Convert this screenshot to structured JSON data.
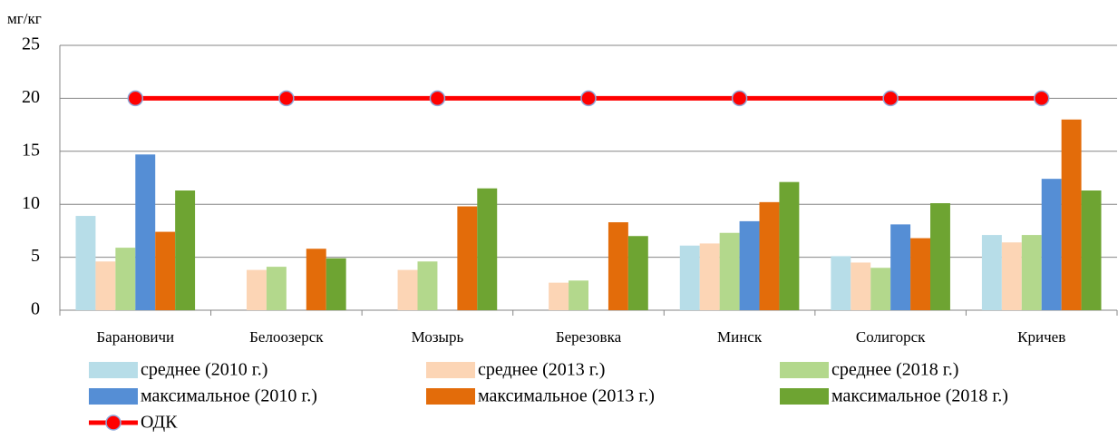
{
  "chart_data": {
    "type": "bar",
    "ylabel": "мг/кг",
    "categories": [
      "Барановичи",
      "Белоозерск",
      "Мозырь",
      "Березовка",
      "Минск",
      "Солигорск",
      "Кричев"
    ],
    "series": [
      {
        "name": "среднее (2010 г.)",
        "color": "#b7dde8",
        "values": [
          8.9,
          null,
          null,
          null,
          6.1,
          5.1,
          7.1
        ]
      },
      {
        "name": "среднее (2013 г.)",
        "color": "#fcd5b5",
        "values": [
          4.6,
          3.8,
          3.8,
          2.6,
          6.3,
          4.5,
          6.4
        ]
      },
      {
        "name": "среднее (2018 г.)",
        "color": "#b3d88c",
        "values": [
          5.9,
          4.1,
          4.6,
          2.8,
          7.3,
          4.0,
          7.1
        ]
      },
      {
        "name": "максимальное (2010 г.)",
        "color": "#558ed5",
        "values": [
          14.7,
          null,
          null,
          null,
          8.4,
          8.1,
          12.4
        ]
      },
      {
        "name": "максимальное (2013 г.)",
        "color": "#e36c0a",
        "values": [
          7.4,
          5.8,
          9.8,
          8.3,
          10.2,
          6.8,
          18.0
        ]
      },
      {
        "name": "максимальное (2018 г.)",
        "color": "#6ea432",
        "values": [
          11.3,
          4.9,
          11.5,
          7.0,
          12.1,
          10.1,
          11.3
        ]
      },
      {
        "name": "ОДК",
        "type": "line",
        "color": "#ff0000",
        "values": [
          20,
          20,
          20,
          20,
          20,
          20,
          20
        ]
      }
    ],
    "ylim": [
      0,
      25
    ],
    "yticks": [
      0,
      5,
      10,
      15,
      20,
      25
    ],
    "grid": true
  }
}
